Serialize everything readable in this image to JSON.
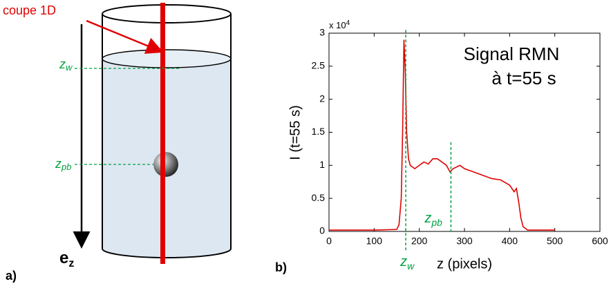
{
  "diagram": {
    "cut_label": "coupe 1D",
    "zw": {
      "base": "z",
      "sub": "w"
    },
    "zpb": {
      "base": "z",
      "sub": "pb"
    },
    "ez": {
      "base": "e",
      "sub": "z"
    },
    "panel_label": "a)"
  },
  "chart_data": {
    "type": "line",
    "panel_label": "b)",
    "annotation": [
      "Signal RMN",
      "à t=55 s"
    ],
    "xlabel": "z (pixels)",
    "ylabel": "I (t=55 s)",
    "y_multiplier": {
      "base": "x 10",
      "exponent": "4"
    },
    "color": "#e00000",
    "marker_color": "#00a040",
    "x": [
      0,
      50,
      100,
      150,
      155,
      160,
      163,
      166,
      169,
      172,
      176,
      180,
      190,
      200,
      210,
      220,
      230,
      240,
      250,
      260,
      268,
      275,
      290,
      300,
      320,
      340,
      360,
      380,
      400,
      410,
      415,
      420,
      425,
      430,
      440,
      500
    ],
    "values": [
      0.02,
      0.02,
      0.02,
      0.03,
      0.1,
      0.5,
      1.5,
      2.9,
      2.4,
      1.5,
      1.1,
      1.0,
      0.95,
      1.0,
      1.05,
      1.02,
      1.1,
      1.1,
      1.05,
      1.0,
      0.9,
      0.95,
      1.0,
      0.95,
      0.9,
      0.85,
      0.8,
      0.78,
      0.7,
      0.6,
      0.65,
      0.45,
      0.2,
      0.07,
      0.02,
      0.02
    ],
    "markers": [
      {
        "x": 170,
        "top": 3.05,
        "base": "z",
        "sub": "w"
      },
      {
        "x": 270,
        "top": 1.35,
        "base": "z",
        "sub": "pb"
      }
    ],
    "xlim": [
      0,
      600
    ],
    "xticks": [
      0,
      100,
      200,
      300,
      400,
      500,
      600
    ],
    "ylim": [
      0,
      3
    ],
    "yticks": [
      0,
      0.5,
      1,
      1.5,
      2,
      2.5,
      3
    ]
  }
}
